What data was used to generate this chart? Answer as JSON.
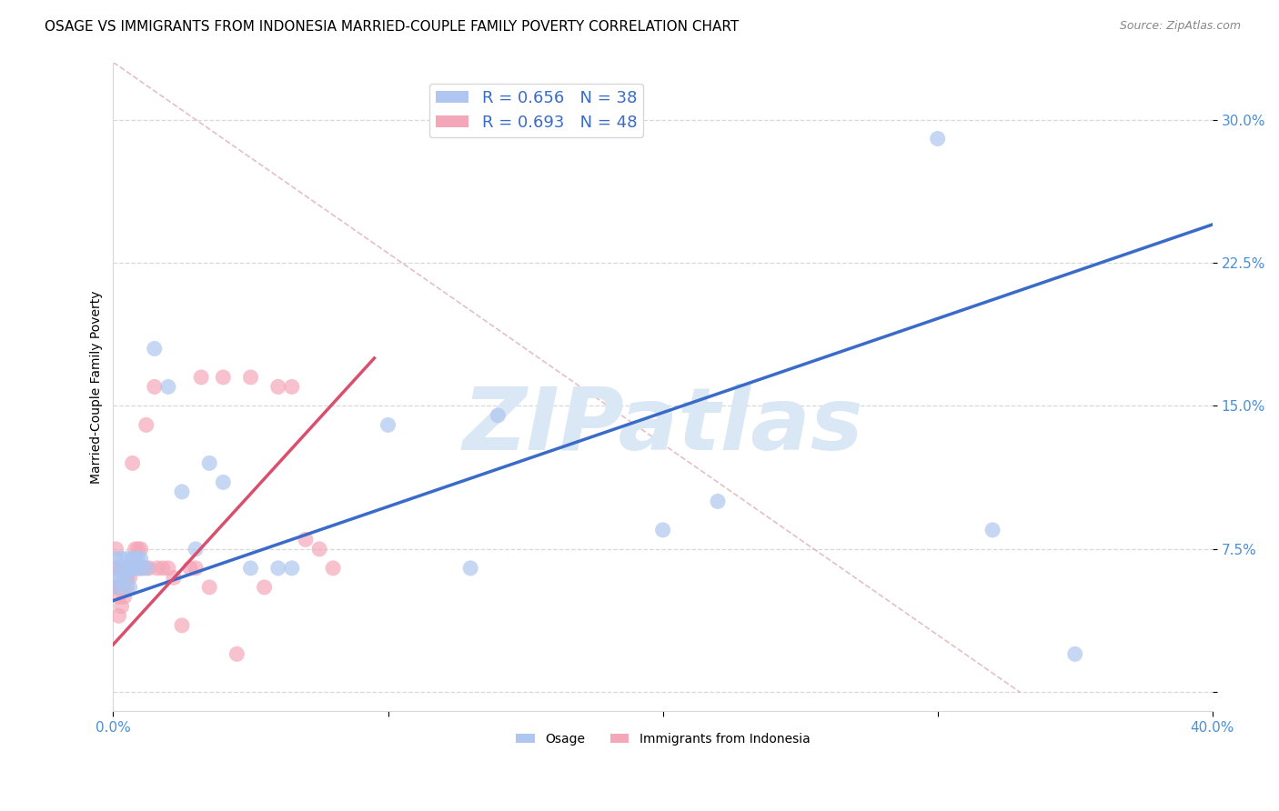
{
  "title": "OSAGE VS IMMIGRANTS FROM INDONESIA MARRIED-COUPLE FAMILY POVERTY CORRELATION CHART",
  "source": "Source: ZipAtlas.com",
  "ylabel": "Married-Couple Family Poverty",
  "xlim": [
    0.0,
    0.4
  ],
  "ylim": [
    -0.01,
    0.33
  ],
  "yticks": [
    0.0,
    0.075,
    0.15,
    0.225,
    0.3
  ],
  "yticklabels_right": [
    "",
    "7.5%",
    "15.0%",
    "22.5%",
    "30.0%"
  ],
  "osage_R": 0.656,
  "osage_N": 38,
  "indonesia_R": 0.693,
  "indonesia_N": 48,
  "osage_color": "#aec6f0",
  "indonesia_color": "#f4a7b9",
  "osage_line_color": "#3a6bc8",
  "indonesia_line_color": "#d94f6e",
  "diagonal_color": "#ddb0b8",
  "background_color": "#ffffff",
  "grid_color": "#d8d8d8",
  "watermark_text": "ZIPatlas",
  "watermark_color": "#dae8f5",
  "title_fontsize": 11,
  "source_fontsize": 9,
  "label_fontsize": 10,
  "tick_fontsize": 11,
  "legend_fontsize": 13,
  "osage_points_x": [
    0.001,
    0.001,
    0.002,
    0.002,
    0.003,
    0.003,
    0.004,
    0.004,
    0.005,
    0.005,
    0.006,
    0.006,
    0.007,
    0.007,
    0.008,
    0.008,
    0.009,
    0.009,
    0.01,
    0.01,
    0.012,
    0.015,
    0.02,
    0.025,
    0.03,
    0.035,
    0.04,
    0.05,
    0.06,
    0.065,
    0.1,
    0.13,
    0.14,
    0.2,
    0.22,
    0.3,
    0.32,
    0.35
  ],
  "osage_points_y": [
    0.055,
    0.07,
    0.06,
    0.065,
    0.06,
    0.07,
    0.055,
    0.065,
    0.06,
    0.07,
    0.055,
    0.065,
    0.065,
    0.07,
    0.065,
    0.07,
    0.065,
    0.07,
    0.065,
    0.07,
    0.065,
    0.18,
    0.16,
    0.105,
    0.075,
    0.12,
    0.11,
    0.065,
    0.065,
    0.065,
    0.14,
    0.065,
    0.145,
    0.085,
    0.1,
    0.29,
    0.085,
    0.02
  ],
  "indonesia_points_x": [
    0.001,
    0.001,
    0.001,
    0.002,
    0.002,
    0.002,
    0.002,
    0.003,
    0.003,
    0.003,
    0.004,
    0.004,
    0.004,
    0.005,
    0.005,
    0.005,
    0.006,
    0.006,
    0.007,
    0.007,
    0.008,
    0.008,
    0.009,
    0.009,
    0.01,
    0.01,
    0.011,
    0.012,
    0.013,
    0.015,
    0.016,
    0.018,
    0.02,
    0.022,
    0.025,
    0.028,
    0.03,
    0.032,
    0.035,
    0.04,
    0.045,
    0.05,
    0.055,
    0.06,
    0.065,
    0.07,
    0.075,
    0.08
  ],
  "indonesia_points_y": [
    0.055,
    0.065,
    0.075,
    0.04,
    0.05,
    0.055,
    0.065,
    0.045,
    0.055,
    0.065,
    0.05,
    0.06,
    0.065,
    0.055,
    0.06,
    0.065,
    0.06,
    0.065,
    0.065,
    0.12,
    0.065,
    0.075,
    0.065,
    0.075,
    0.065,
    0.075,
    0.065,
    0.14,
    0.065,
    0.16,
    0.065,
    0.065,
    0.065,
    0.06,
    0.035,
    0.065,
    0.065,
    0.165,
    0.055,
    0.165,
    0.02,
    0.165,
    0.055,
    0.16,
    0.16,
    0.08,
    0.075,
    0.065
  ],
  "osage_line_x": [
    0.0,
    0.4
  ],
  "osage_line_y": [
    0.048,
    0.245
  ],
  "indonesia_line_x": [
    0.0,
    0.095
  ],
  "indonesia_line_y": [
    0.025,
    0.175
  ],
  "diagonal_line_x": [
    0.0,
    0.33
  ],
  "diagonal_line_y": [
    0.33,
    0.0
  ]
}
